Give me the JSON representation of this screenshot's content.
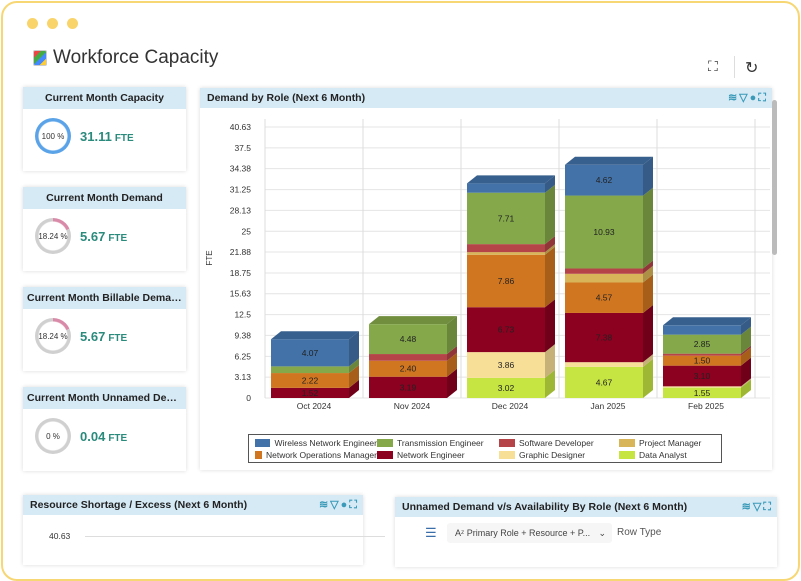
{
  "app": {
    "title": "Workforce Capacity",
    "fullscreen_icon": "expand-icon",
    "refresh_icon": "refresh-icon"
  },
  "cards": [
    {
      "title": "Current Month Capacity",
      "percent_label": "100 %",
      "percent": 100,
      "value": "31.11",
      "unit": "FTE"
    },
    {
      "title": "Current Month Demand",
      "percent_label": "18.24 %",
      "percent": 18.24,
      "value": "5.67",
      "unit": "FTE"
    },
    {
      "title": "Current Month Billable Demand",
      "percent_label": "18.24 %",
      "percent": 18.24,
      "value": "5.67",
      "unit": "FTE"
    },
    {
      "title": "Current Month Unnamed Dem...",
      "percent_label": "0 %",
      "percent": 0,
      "value": "0.04",
      "unit": "FTE"
    }
  ],
  "colors": {
    "ring_full": "#5aa3e8",
    "ring_partial": "#d98aa8",
    "ring_track": "#d0d0d0",
    "value": "#2a8a7c",
    "header_bg": "#d6eaf6",
    "frame": "#f7d774"
  },
  "panels": {
    "demand": {
      "title": "Demand by Role (Next 6 Month)"
    },
    "shortage": {
      "title": "Resource Shortage / Excess (Next 6 Month)",
      "y_top_tick": "40.63"
    },
    "unnamed": {
      "title": "Unnamed Demand v/s Availability By Role (Next 6 Month)",
      "group_select": "Primary Role + Resource + P...",
      "row_type_label": "Row Type"
    }
  },
  "chart_data": {
    "type": "bar",
    "stacked": true,
    "three_d": true,
    "title": "Demand by Role (Next 6 Month)",
    "ylabel": "FTE",
    "ylim": [
      0,
      40.63
    ],
    "yticks": [
      "0",
      "3.13",
      "6.25",
      "9.38",
      "12.5",
      "15.63",
      "18.75",
      "21.88",
      "25",
      "28.13",
      "31.25",
      "34.38",
      "37.5",
      "40.63"
    ],
    "categories": [
      "Oct 2024",
      "Nov 2024",
      "Dec 2024",
      "Jan 2025",
      "Feb 2025"
    ],
    "grid": true,
    "legend": "bottom",
    "series": [
      {
        "name": "Data Analyst",
        "color": "#c6e543",
        "values": [
          0,
          0,
          3.02,
          4.67,
          1.55
        ]
      },
      {
        "name": "Graphic Designer",
        "color": "#f8df98",
        "values": [
          0,
          0,
          3.86,
          0.7,
          0.2
        ]
      },
      {
        "name": "Network Engineer",
        "color": "#8c0020",
        "values": [
          1.52,
          3.19,
          6.73,
          7.38,
          3.1
        ]
      },
      {
        "name": "Network Operations Manager",
        "color": "#d07620",
        "values": [
          2.22,
          2.4,
          7.86,
          4.57,
          1.5
        ]
      },
      {
        "name": "Project Manager",
        "color": "#d7b558",
        "values": [
          0,
          0,
          0.4,
          1.3,
          0
        ]
      },
      {
        "name": "Software Developer",
        "color": "#b44448",
        "values": [
          0,
          1.0,
          1.2,
          0.8,
          0.3
        ]
      },
      {
        "name": "Transmission Engineer",
        "color": "#84a84a",
        "values": [
          1.0,
          4.48,
          7.71,
          10.93,
          2.85
        ]
      },
      {
        "name": "Wireless Network Engineer",
        "color": "#4372a8",
        "values": [
          4.07,
          0,
          1.4,
          4.62,
          1.4
        ]
      }
    ],
    "legend_order": [
      "Wireless Network Engineer",
      "Transmission Engineer",
      "Software Developer",
      "Project Manager",
      "Network Operations Manager",
      "Network Engineer",
      "Graphic Designer",
      "Data Analyst"
    ]
  }
}
